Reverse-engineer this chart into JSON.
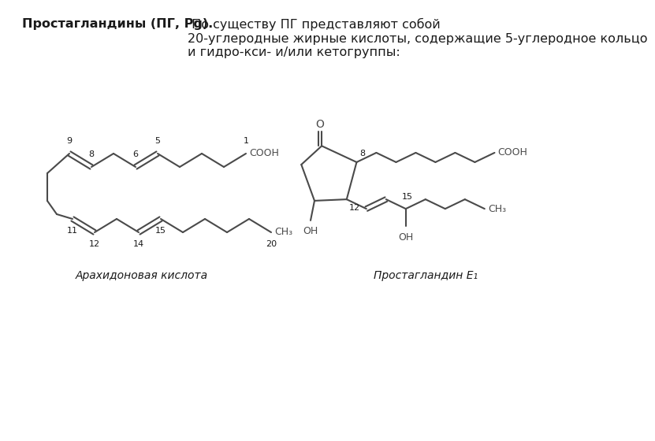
{
  "bg_color": "#ffffff",
  "text_color": "#1a1a1a",
  "line_color": "#4a4a4a",
  "title_bold": "Простагландины (ПГ, Pg).",
  "title_rest": " По существу ПГ представляют собой 20-углеродные жирные кислоты, содержащие 5-углеродное кольцо и гидро-кси- и/или кетогруппы:",
  "label_left": "Арахидоновая кислота",
  "label_right": "Простагландин Е₁",
  "font_size_title": 11.5,
  "font_size_label": 10,
  "font_size_chem": 9,
  "font_size_num": 8,
  "lw": 1.5
}
